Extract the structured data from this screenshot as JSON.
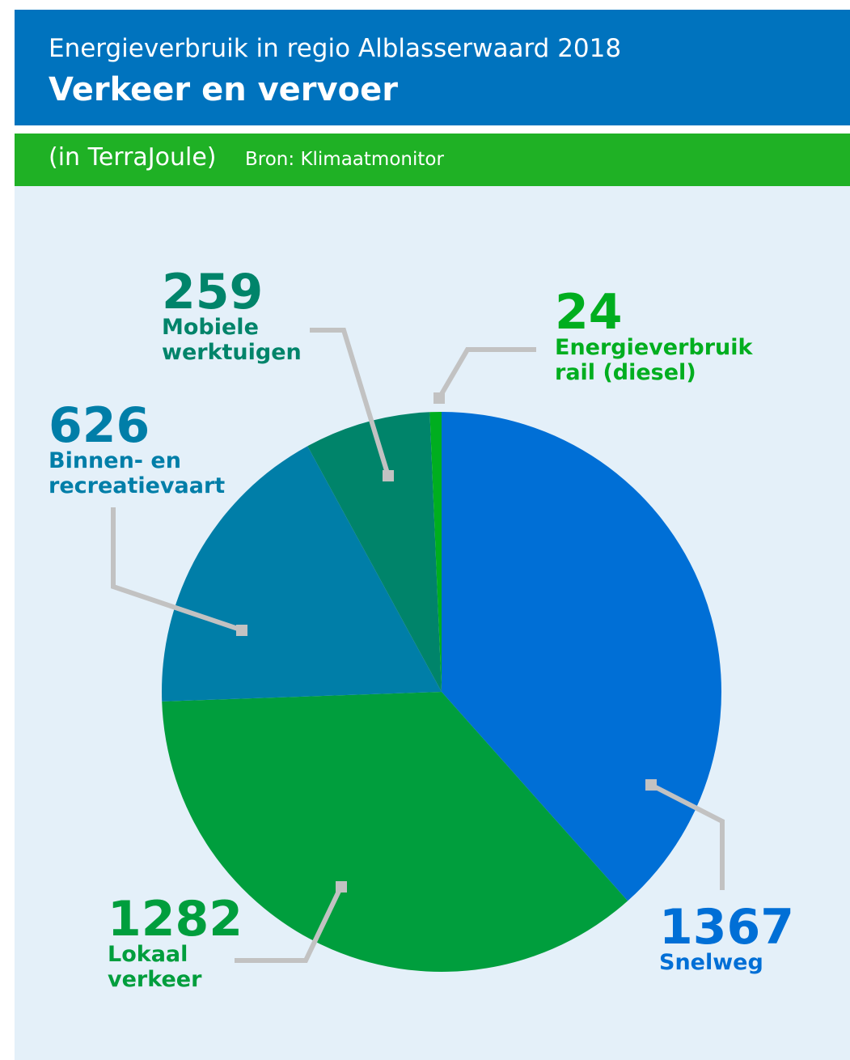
{
  "chart_data": {
    "type": "pie",
    "subtitle": "Energieverbruik in regio Alblasserwaard 2018",
    "title": "Verkeer en vervoer",
    "unit": "(in TerraJoule)",
    "source": "Bron: Klimaatmonitor",
    "categories": [
      "Snelweg",
      "Lokaal\nverkeer",
      "Binnen- en\nrecreatievaart",
      "Mobiele\nwerktuigen",
      "Energieverbruik\nrail (diesel)"
    ],
    "values": [
      1367,
      1282,
      626,
      259,
      24
    ],
    "colors": [
      "#006fd6",
      "#009e3d",
      "#007ea8",
      "#00846a",
      "#00ae1f"
    ]
  }
}
